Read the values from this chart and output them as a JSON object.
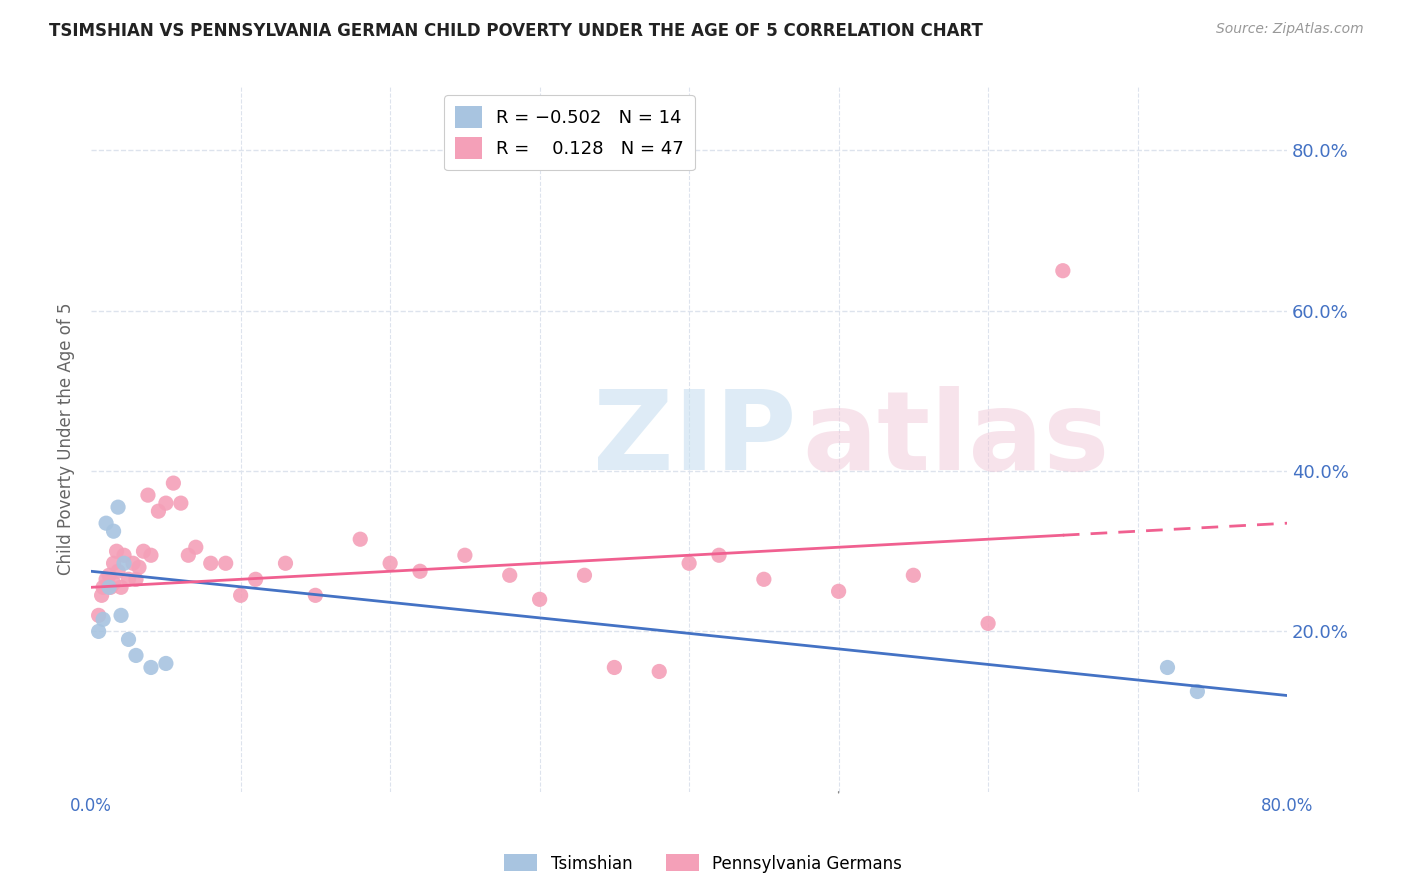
{
  "title": "TSIMSHIAN VS PENNSYLVANIA GERMAN CHILD POVERTY UNDER THE AGE OF 5 CORRELATION CHART",
  "source": "Source: ZipAtlas.com",
  "ylabel": "Child Poverty Under the Age of 5",
  "xlim": [
    0.0,
    0.8
  ],
  "ylim": [
    0.0,
    0.88
  ],
  "yticks": [
    0.0,
    0.2,
    0.4,
    0.6,
    0.8
  ],
  "ytick_labels": [
    "",
    "20.0%",
    "40.0%",
    "60.0%",
    "80.0%"
  ],
  "xticks": [
    0.0,
    0.1,
    0.2,
    0.3,
    0.4,
    0.5,
    0.6,
    0.7,
    0.8
  ],
  "xtick_labels": [
    "0.0%",
    "",
    "",
    "",
    "",
    "",
    "",
    "",
    "80.0%"
  ],
  "color_tsimshian": "#a8c4e0",
  "color_penn_german": "#f4a0b8",
  "color_line_tsimshian": "#4472c4",
  "color_line_penn_german": "#f06090",
  "color_axis_labels": "#4472c4",
  "color_grid": "#dde3ed",
  "background_color": "#ffffff",
  "tsimshian_x": [
    0.005,
    0.008,
    0.01,
    0.012,
    0.015,
    0.018,
    0.02,
    0.022,
    0.025,
    0.03,
    0.04,
    0.05,
    0.72,
    0.74
  ],
  "tsimshian_y": [
    0.2,
    0.215,
    0.335,
    0.255,
    0.325,
    0.355,
    0.22,
    0.285,
    0.19,
    0.17,
    0.155,
    0.16,
    0.155,
    0.125
  ],
  "penn_german_x": [
    0.005,
    0.007,
    0.008,
    0.01,
    0.012,
    0.013,
    0.015,
    0.015,
    0.017,
    0.018,
    0.02,
    0.022,
    0.025,
    0.028,
    0.03,
    0.032,
    0.035,
    0.038,
    0.04,
    0.045,
    0.05,
    0.055,
    0.06,
    0.065,
    0.07,
    0.08,
    0.09,
    0.1,
    0.11,
    0.13,
    0.15,
    0.18,
    0.2,
    0.22,
    0.25,
    0.28,
    0.3,
    0.33,
    0.35,
    0.38,
    0.4,
    0.42,
    0.45,
    0.5,
    0.55,
    0.6,
    0.65
  ],
  "penn_german_y": [
    0.22,
    0.245,
    0.255,
    0.265,
    0.27,
    0.255,
    0.285,
    0.26,
    0.3,
    0.275,
    0.255,
    0.295,
    0.265,
    0.285,
    0.265,
    0.28,
    0.3,
    0.37,
    0.295,
    0.35,
    0.36,
    0.385,
    0.36,
    0.295,
    0.305,
    0.285,
    0.285,
    0.245,
    0.265,
    0.285,
    0.245,
    0.315,
    0.285,
    0.275,
    0.295,
    0.27,
    0.24,
    0.27,
    0.155,
    0.15,
    0.285,
    0.295,
    0.265,
    0.25,
    0.27,
    0.21,
    0.65
  ],
  "line_tsim_x0": 0.0,
  "line_tsim_y0": 0.275,
  "line_tsim_x1": 0.8,
  "line_tsim_y1": 0.12,
  "line_penn_x0": 0.0,
  "line_penn_y0": 0.255,
  "line_penn_x1": 0.8,
  "line_penn_y1": 0.335,
  "line_penn_solid_end": 0.65,
  "marker_size": 120
}
